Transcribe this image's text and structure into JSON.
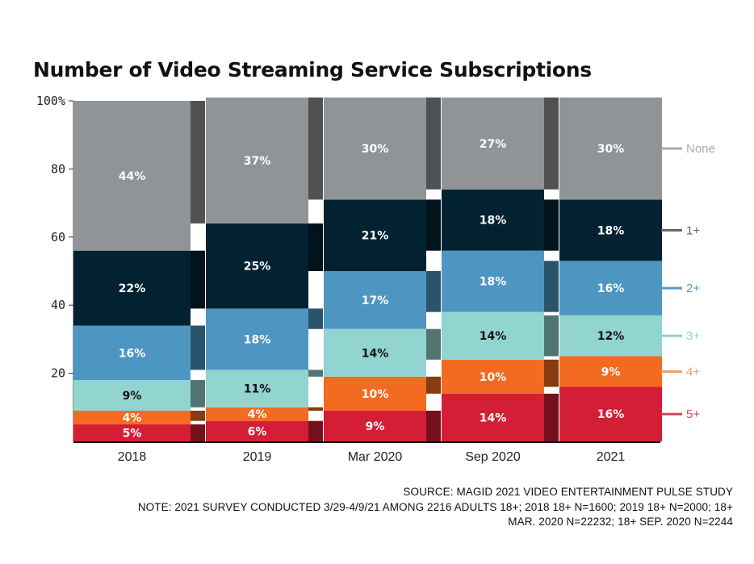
{
  "chart_data": {
    "type": "bar",
    "stacked": true,
    "title": "Number of Video Streaming Service Subscriptions",
    "categories": [
      "2018",
      "2019",
      "Mar 2020",
      "Sep 2020",
      "2021"
    ],
    "ylim": [
      0,
      100
    ],
    "yticks": [
      {
        "value": 100,
        "label": "100%"
      },
      {
        "value": 80,
        "label": "80"
      },
      {
        "value": 60,
        "label": "60"
      },
      {
        "value": 40,
        "label": "40"
      },
      {
        "value": 20,
        "label": "20"
      }
    ],
    "series": [
      {
        "name": "5+",
        "color": "#d41e35",
        "text_color": "#ffffff",
        "legend_color": "#d04a55",
        "values": [
          5,
          6,
          9,
          14,
          16
        ],
        "labels": [
          "5%",
          "6%",
          "9%",
          "14%",
          "16%"
        ]
      },
      {
        "name": "4+",
        "color": "#f36b21",
        "text_color": "#ffffff",
        "legend_color": "#f0a068",
        "values": [
          4,
          4,
          10,
          10,
          9
        ],
        "labels": [
          "4%",
          "4%",
          "10%",
          "10%",
          "9%"
        ]
      },
      {
        "name": "3+",
        "color": "#92d4d0",
        "text_color": "#111111",
        "legend_color": "#8fd0cb",
        "values": [
          9,
          11,
          14,
          14,
          12
        ],
        "labels": [
          "9%",
          "11%",
          "14%",
          "14%",
          "12%"
        ]
      },
      {
        "name": "2+",
        "color": "#4e96c2",
        "text_color": "#ffffff",
        "legend_color": "#5a9ac4",
        "values": [
          16,
          18,
          17,
          18,
          16
        ],
        "labels": [
          "16%",
          "18%",
          "17%",
          "18%",
          "16%"
        ]
      },
      {
        "name": "1+",
        "color": "#022231",
        "text_color": "#ffffff",
        "legend_color": "#5a6470",
        "values": [
          22,
          25,
          21,
          18,
          18
        ],
        "labels": [
          "22%",
          "25%",
          "21%",
          "18%",
          "18%"
        ]
      },
      {
        "name": "None",
        "color": "#909497",
        "text_color": "#ffffff",
        "legend_color": "#a9acae",
        "values": [
          44,
          37,
          30,
          27,
          30
        ],
        "labels": [
          "44%",
          "37%",
          "30%",
          "27%",
          "30%"
        ]
      }
    ],
    "legend_position": "right"
  },
  "source_note": "SOURCE: MAGID 2021 VIDEO ENTERTAINMENT PULSE STUDY",
  "survey_note_line1": "NOTE: 2021 SURVEY CONDUCTED 3/29-4/9/21 AMONG 2216 ADULTS 18+; 2018 18+ N=1600; 2019 18+ N=2000; 18+",
  "survey_note_line2": "MAR. 2020 N=22232; 18+ SEP. 2020 N=2244"
}
